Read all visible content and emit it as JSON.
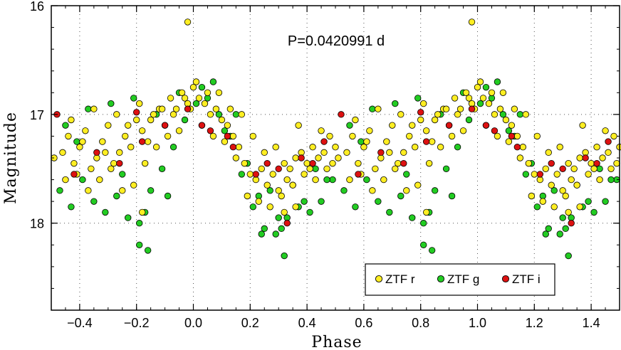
{
  "chart_data": {
    "type": "scatter",
    "title": "",
    "annotation": "P=0.0420991 d",
    "xlabel": "Phase",
    "ylabel": "Magnitude",
    "xlim": [
      -0.5,
      1.5
    ],
    "ylim": [
      18.8,
      16.0
    ],
    "y_inverted": true,
    "grid": true,
    "legend_position": "bottom-right",
    "x_ticks": [
      "−0.4",
      "−0.2",
      "0.0",
      "0.2",
      "0.4",
      "0.6",
      "0.8",
      "1.0",
      "1.2",
      "1.4"
    ],
    "x_tick_values": [
      -0.4,
      -0.2,
      0.0,
      0.2,
      0.4,
      0.6,
      0.8,
      1.0,
      1.2,
      1.4
    ],
    "y_ticks": [
      "16",
      "17",
      "18"
    ],
    "y_tick_values": [
      16,
      17,
      18
    ],
    "series": [
      {
        "name": "ZTF r",
        "color": "#ffee22",
        "period_repeat": 1.0,
        "x": [
          -0.46,
          -0.44,
          -0.42,
          -0.4,
          -0.38,
          -0.36,
          -0.34,
          -0.32,
          -0.3,
          -0.28,
          -0.26,
          -0.24,
          -0.22,
          -0.2,
          -0.18,
          -0.16,
          -0.14,
          -0.12,
          -0.1,
          -0.08,
          -0.06,
          -0.04,
          -0.02,
          0.0,
          0.02,
          0.04,
          0.06,
          0.08,
          0.1,
          0.12,
          0.14,
          0.16,
          0.18,
          0.2,
          0.22,
          0.24,
          0.26,
          0.28,
          0.3,
          0.32,
          0.34,
          0.36,
          0.38,
          0.4,
          0.42,
          0.44,
          0.46,
          0.48,
          0.5,
          -0.45,
          -0.41,
          -0.37,
          -0.33,
          -0.29,
          -0.25,
          -0.21,
          -0.17,
          -0.13,
          -0.09,
          -0.05,
          -0.01,
          0.03,
          0.07,
          0.11,
          0.15,
          0.19,
          0.23,
          0.27,
          0.31,
          0.35,
          0.39,
          0.43,
          0.47,
          -0.43,
          -0.35,
          -0.27,
          -0.19,
          -0.11,
          -0.03,
          0.05,
          0.13,
          0.21,
          0.29,
          0.37,
          0.45,
          -0.49,
          -0.39,
          -0.31,
          -0.23,
          -0.15,
          -0.07,
          0.01,
          0.09,
          0.17,
          0.25,
          0.33,
          0.41,
          0.49,
          -0.02,
          0.32,
          -0.18,
          0.36
        ],
        "y": [
          17.35,
          17.2,
          17.45,
          17.3,
          17.15,
          17.5,
          17.4,
          17.25,
          17.1,
          17.45,
          17.35,
          17.2,
          17.3,
          17.05,
          17.15,
          17.25,
          17.0,
          16.95,
          17.1,
          16.85,
          16.95,
          16.8,
          16.9,
          16.75,
          16.85,
          16.9,
          17.0,
          16.95,
          17.05,
          17.1,
          17.2,
          17.3,
          17.45,
          17.55,
          17.6,
          17.5,
          17.65,
          17.55,
          17.7,
          17.45,
          17.5,
          17.4,
          17.35,
          17.45,
          17.3,
          17.4,
          17.35,
          17.2,
          17.3,
          17.6,
          17.55,
          17.7,
          17.6,
          17.5,
          17.7,
          17.65,
          17.45,
          17.3,
          17.2,
          17.15,
          16.95,
          17.1,
          17.2,
          17.25,
          17.4,
          17.75,
          17.8,
          17.85,
          17.75,
          17.65,
          17.55,
          17.6,
          17.5,
          17.05,
          16.95,
          17.0,
          16.9,
          16.95,
          16.85,
          16.8,
          16.95,
          17.2,
          17.3,
          17.1,
          17.15,
          17.4,
          17.25,
          17.35,
          17.1,
          17.05,
          17.0,
          16.7,
          16.8,
          17.0,
          17.35,
          17.6,
          17.5,
          17.45,
          16.15,
          17.9,
          17.9,
          17.85
        ]
      },
      {
        "name": "ZTF g",
        "color": "#22cc22",
        "period_repeat": 1.0,
        "x": [
          -0.47,
          -0.43,
          -0.39,
          -0.35,
          -0.31,
          -0.27,
          -0.23,
          -0.19,
          -0.15,
          -0.11,
          -0.07,
          -0.03,
          0.01,
          0.05,
          0.09,
          0.13,
          0.17,
          0.21,
          0.25,
          0.29,
          0.33,
          0.37,
          0.41,
          0.45,
          0.49,
          -0.45,
          -0.37,
          -0.29,
          -0.21,
          -0.13,
          -0.05,
          0.03,
          0.11,
          0.19,
          0.27,
          0.35,
          0.43,
          -0.41,
          -0.25,
          -0.17,
          -0.09,
          0.07,
          0.15,
          0.23,
          0.31,
          0.39,
          0.47,
          -0.19,
          -0.16,
          0.32,
          0.24,
          0.3
        ],
        "y": [
          17.7,
          17.85,
          17.6,
          17.8,
          17.9,
          17.75,
          17.95,
          18.0,
          17.7,
          17.5,
          17.3,
          17.05,
          16.9,
          16.85,
          17.0,
          17.2,
          17.55,
          17.85,
          18.05,
          18.1,
          17.95,
          17.85,
          17.9,
          17.8,
          17.6,
          17.1,
          16.95,
          16.9,
          16.85,
          17.0,
          16.8,
          16.75,
          17.15,
          17.45,
          17.7,
          17.65,
          17.5,
          17.25,
          17.55,
          17.9,
          17.75,
          16.7,
          17.0,
          17.75,
          18.05,
          17.8,
          17.6,
          18.2,
          18.25,
          18.3,
          18.1,
          17.95
        ]
      },
      {
        "name": "ZTF i",
        "color": "#dd1111",
        "period_repeat": 1.0,
        "x": [
          -0.48,
          -0.42,
          -0.34,
          -0.26,
          -0.18,
          -0.1,
          -0.02,
          0.06,
          0.14,
          0.22,
          0.3,
          0.38,
          0.46,
          -0.2,
          0.03,
          0.12,
          0.26,
          0.42,
          0.33
        ],
        "y": [
          17.0,
          17.55,
          17.35,
          17.45,
          17.25,
          17.1,
          16.95,
          17.15,
          17.3,
          17.55,
          17.5,
          17.4,
          17.25,
          16.98,
          17.1,
          17.2,
          17.45,
          17.45,
          18.0
        ]
      }
    ]
  },
  "legend": {
    "r_label": "ZTF r",
    "g_label": "ZTF g",
    "i_label": "ZTF i"
  }
}
